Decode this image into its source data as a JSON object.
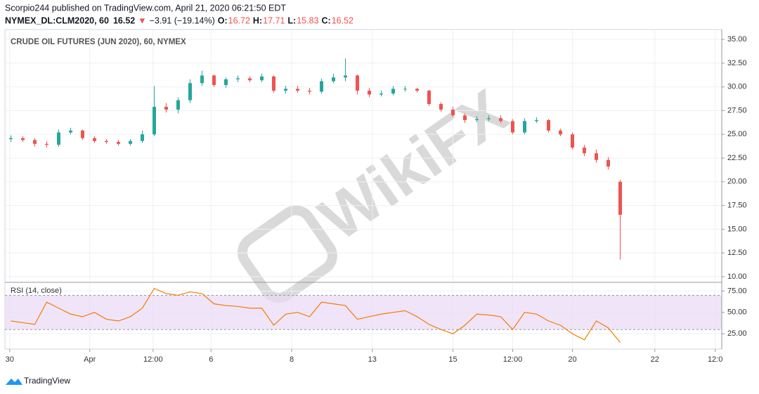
{
  "header": {
    "publisher": "Scorpio244 published on TradingView.com, April 21, 2020 06:21:50 EDT",
    "symbol": "NYMEX_DL:CLM2020, 60",
    "last": "16.52",
    "arrow": "▼",
    "change": "−3.91 (−19.14%)",
    "quote": [
      {
        "label": "O:",
        "value": "16.72"
      },
      {
        "label": "H:",
        "value": "17.71"
      },
      {
        "label": "L:",
        "value": "15.83"
      },
      {
        "label": "C:",
        "value": "16.52"
      }
    ]
  },
  "watermark": "WikiFX",
  "footer": "TradingView",
  "chart_data": [
    {
      "type": "candlestick",
      "title": "CRUDE OIL FUTURES (JUN 2020), 60, NYMEX",
      "up_color": "#26a69a",
      "down_color": "#ef5350",
      "grid": true,
      "x": [
        1,
        3,
        5,
        7,
        9,
        11,
        13,
        15,
        17,
        19,
        21,
        23,
        25,
        27,
        29,
        31,
        33,
        35,
        37,
        39,
        41,
        43,
        45,
        47,
        49,
        51,
        53,
        55,
        57,
        59,
        61,
        63,
        65,
        67,
        69,
        71,
        73,
        75,
        77,
        79,
        81,
        83,
        85,
        87,
        89,
        91,
        93,
        95,
        97,
        99,
        101,
        103
      ],
      "open": [
        24.5,
        24.6,
        24.4,
        24.0,
        23.9,
        25.2,
        25.4,
        24.6,
        24.3,
        24.2,
        24.0,
        24.3,
        25.0,
        27.9,
        27.6,
        28.6,
        30.4,
        31.2,
        30.2,
        30.8,
        30.9,
        30.7,
        31.1,
        29.6,
        29.8,
        29.6,
        29.5,
        30.6,
        31.0,
        31.2,
        29.6,
        29.2,
        29.3,
        29.8,
        29.8,
        29.6,
        28.2,
        27.6,
        27.0,
        26.5,
        26.6,
        26.7,
        26.4,
        25.2,
        26.4,
        26.5,
        25.4,
        25.0,
        23.6,
        23.0,
        22.3,
        20.0
      ],
      "high": [
        24.9,
        24.8,
        24.6,
        24.3,
        25.5,
        25.7,
        25.5,
        24.8,
        24.5,
        24.4,
        24.5,
        25.4,
        30.1,
        28.3,
        28.9,
        30.8,
        31.7,
        31.3,
        31.0,
        31.2,
        31.1,
        31.4,
        31.2,
        30.1,
        30.1,
        29.9,
        30.9,
        31.4,
        33.0,
        31.3,
        29.9,
        29.6,
        30.1,
        30.1,
        29.9,
        29.7,
        28.4,
        27.9,
        27.2,
        26.9,
        27.0,
        27.0,
        26.6,
        26.7,
        26.8,
        26.6,
        25.6,
        25.2,
        23.9,
        23.4,
        22.6,
        20.2
      ],
      "low": [
        24.2,
        24.2,
        23.7,
        23.6,
        23.7,
        25.0,
        24.4,
        24.1,
        24.0,
        23.8,
        23.8,
        24.1,
        24.8,
        27.3,
        27.2,
        28.3,
        30.1,
        30.0,
        29.9,
        30.5,
        30.5,
        30.5,
        29.4,
        29.3,
        29.4,
        29.2,
        29.3,
        30.4,
        30.6,
        29.2,
        28.9,
        29.0,
        29.1,
        29.5,
        29.4,
        28.0,
        27.4,
        26.8,
        26.2,
        26.3,
        26.4,
        26.2,
        25.0,
        25.0,
        26.2,
        25.2,
        24.8,
        23.4,
        22.7,
        22.0,
        21.3,
        11.8
      ],
      "close": [
        24.6,
        24.4,
        24.0,
        23.9,
        25.2,
        25.4,
        24.6,
        24.3,
        24.2,
        24.0,
        24.3,
        25.0,
        27.9,
        27.6,
        28.6,
        30.4,
        31.2,
        30.2,
        30.8,
        30.9,
        30.7,
        31.1,
        29.6,
        29.8,
        29.6,
        29.5,
        30.6,
        31.0,
        31.2,
        29.6,
        29.2,
        29.3,
        29.8,
        29.8,
        29.6,
        28.2,
        27.6,
        27.0,
        26.5,
        26.6,
        26.7,
        26.4,
        25.2,
        26.4,
        26.5,
        25.4,
        25.0,
        23.6,
        23.0,
        22.3,
        21.6,
        16.52
      ],
      "xlim": [
        0,
        120
      ],
      "ylim": [
        9.55,
        36.05
      ],
      "yticks": [
        {
          "value": 10,
          "label": "10.00"
        },
        {
          "value": 12.5,
          "label": "12.50"
        },
        {
          "value": 15,
          "label": "15.00"
        },
        {
          "value": 17.5,
          "label": "17.50"
        },
        {
          "value": 20,
          "label": "20.00"
        },
        {
          "value": 22.5,
          "label": "22.50"
        },
        {
          "value": 25,
          "label": "25.00"
        },
        {
          "value": 27.5,
          "label": "27.50"
        },
        {
          "value": 30,
          "label": "30.00"
        },
        {
          "value": 32.5,
          "label": "32.50"
        },
        {
          "value": 35,
          "label": "35.00"
        }
      ],
      "xticks": [
        {
          "value": 0.8,
          "label": "30"
        },
        {
          "value": 14.2,
          "label": "Apr"
        },
        {
          "value": 24.8,
          "label": "12:00"
        },
        {
          "value": 34.5,
          "label": "6"
        },
        {
          "value": 48,
          "label": "8"
        },
        {
          "value": 61.5,
          "label": "13"
        },
        {
          "value": 75,
          "label": "15"
        },
        {
          "value": 85,
          "label": "12:00"
        },
        {
          "value": 95,
          "label": "20"
        },
        {
          "value": 108.8,
          "label": "22"
        },
        {
          "value": 118.9,
          "label": "12:0"
        }
      ]
    },
    {
      "type": "line",
      "title": "RSI (14, close)",
      "color": "#f57c00",
      "band": [
        30,
        70
      ],
      "band_color": "#e9d9f7",
      "grid": true,
      "x": [
        1,
        3,
        5,
        7,
        9,
        11,
        13,
        15,
        17,
        19,
        21,
        23,
        25,
        27,
        29,
        31,
        33,
        35,
        37,
        39,
        41,
        43,
        45,
        47,
        49,
        51,
        53,
        55,
        57,
        59,
        61,
        63,
        65,
        67,
        69,
        71,
        73,
        75,
        77,
        79,
        81,
        83,
        85,
        87,
        89,
        91,
        93,
        95,
        97,
        99,
        101,
        103
      ],
      "values": [
        40,
        38,
        36,
        62,
        55,
        48,
        45,
        50,
        42,
        40,
        45,
        55,
        78,
        72,
        70,
        74,
        72,
        60,
        58,
        57,
        55,
        55,
        35,
        48,
        50,
        45,
        62,
        60,
        58,
        42,
        45,
        48,
        50,
        52,
        45,
        36,
        30,
        25,
        35,
        48,
        47,
        45,
        30,
        50,
        48,
        40,
        35,
        25,
        18,
        40,
        32,
        15
      ],
      "xlim": [
        0,
        120
      ],
      "ylim": [
        8,
        83.5
      ],
      "yticks": [
        {
          "value": 25,
          "label": "25.00"
        },
        {
          "value": 50,
          "label": "50.00"
        },
        {
          "value": 75,
          "label": "75.00"
        }
      ]
    }
  ]
}
